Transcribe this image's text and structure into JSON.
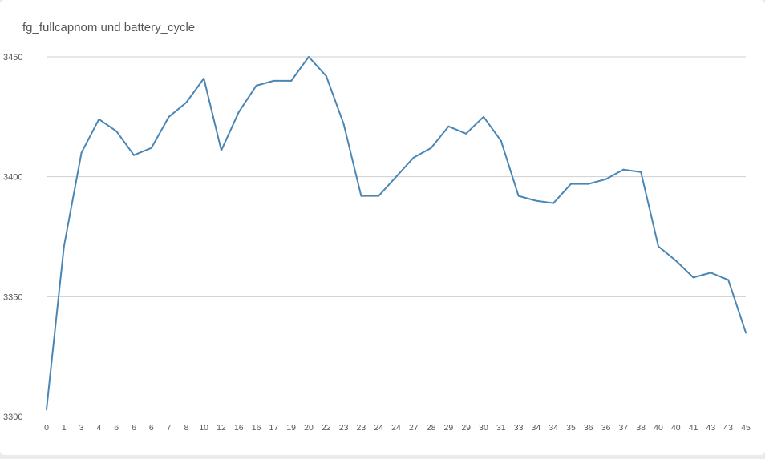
{
  "chart_data": {
    "type": "line",
    "title": "fg_fullcapnom und battery_cycle",
    "xlabel": "",
    "ylabel": "",
    "categories": [
      "0",
      "1",
      "3",
      "4",
      "6",
      "6",
      "6",
      "7",
      "8",
      "10",
      "12",
      "16",
      "16",
      "17",
      "19",
      "20",
      "22",
      "23",
      "23",
      "24",
      "24",
      "27",
      "28",
      "29",
      "29",
      "30",
      "31",
      "33",
      "34",
      "34",
      "35",
      "36",
      "36",
      "37",
      "38",
      "40",
      "40",
      "41",
      "43",
      "43",
      "45"
    ],
    "series": [
      {
        "values": [
          3303,
          3371,
          3410,
          3424,
          3419,
          3409,
          3412,
          3425,
          3431,
          3441,
          3411,
          3427,
          3438,
          3440,
          3440,
          3450,
          3442,
          3422,
          3392,
          3392,
          3400,
          3408,
          3412,
          3421,
          3418,
          3425,
          3415,
          3392,
          3390,
          3389,
          3397,
          3397,
          3399,
          3403,
          3402,
          3371,
          3365,
          3358,
          3360,
          3357,
          3335
        ]
      }
    ],
    "yticks": [
      3300,
      3350,
      3400,
      3450
    ],
    "ylim": [
      3300,
      3450
    ],
    "grid": true,
    "line_color": "#4a86b5",
    "grid_color": "#cfcfcf"
  }
}
